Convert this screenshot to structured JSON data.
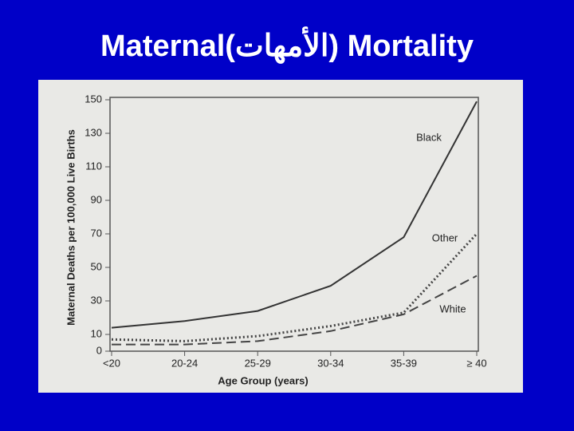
{
  "chart_data": {
    "type": "line",
    "title": "Maternal(الأمهات) Mortality",
    "xlabel": "Age Group (years)",
    "ylabel": "Maternal Deaths per 100,000 Live Births",
    "categories": [
      "<20",
      "20-24",
      "25-29",
      "30-34",
      "35-39",
      "≥ 40"
    ],
    "series": [
      {
        "name": "Black",
        "color": "#333333",
        "style": "solid",
        "values": [
          14,
          18,
          24,
          39,
          68,
          149
        ]
      },
      {
        "name": "Other",
        "color": "#444444",
        "style": "dotted",
        "values": [
          7,
          6,
          9,
          15,
          23,
          70
        ]
      },
      {
        "name": "White",
        "color": "#444444",
        "style": "dashed",
        "values": [
          4,
          4,
          6,
          12,
          22,
          45
        ]
      }
    ],
    "ylim": [
      0,
      150
    ],
    "yticks": [
      0,
      10,
      30,
      50,
      70,
      90,
      110,
      130,
      150
    ],
    "grid": false
  }
}
